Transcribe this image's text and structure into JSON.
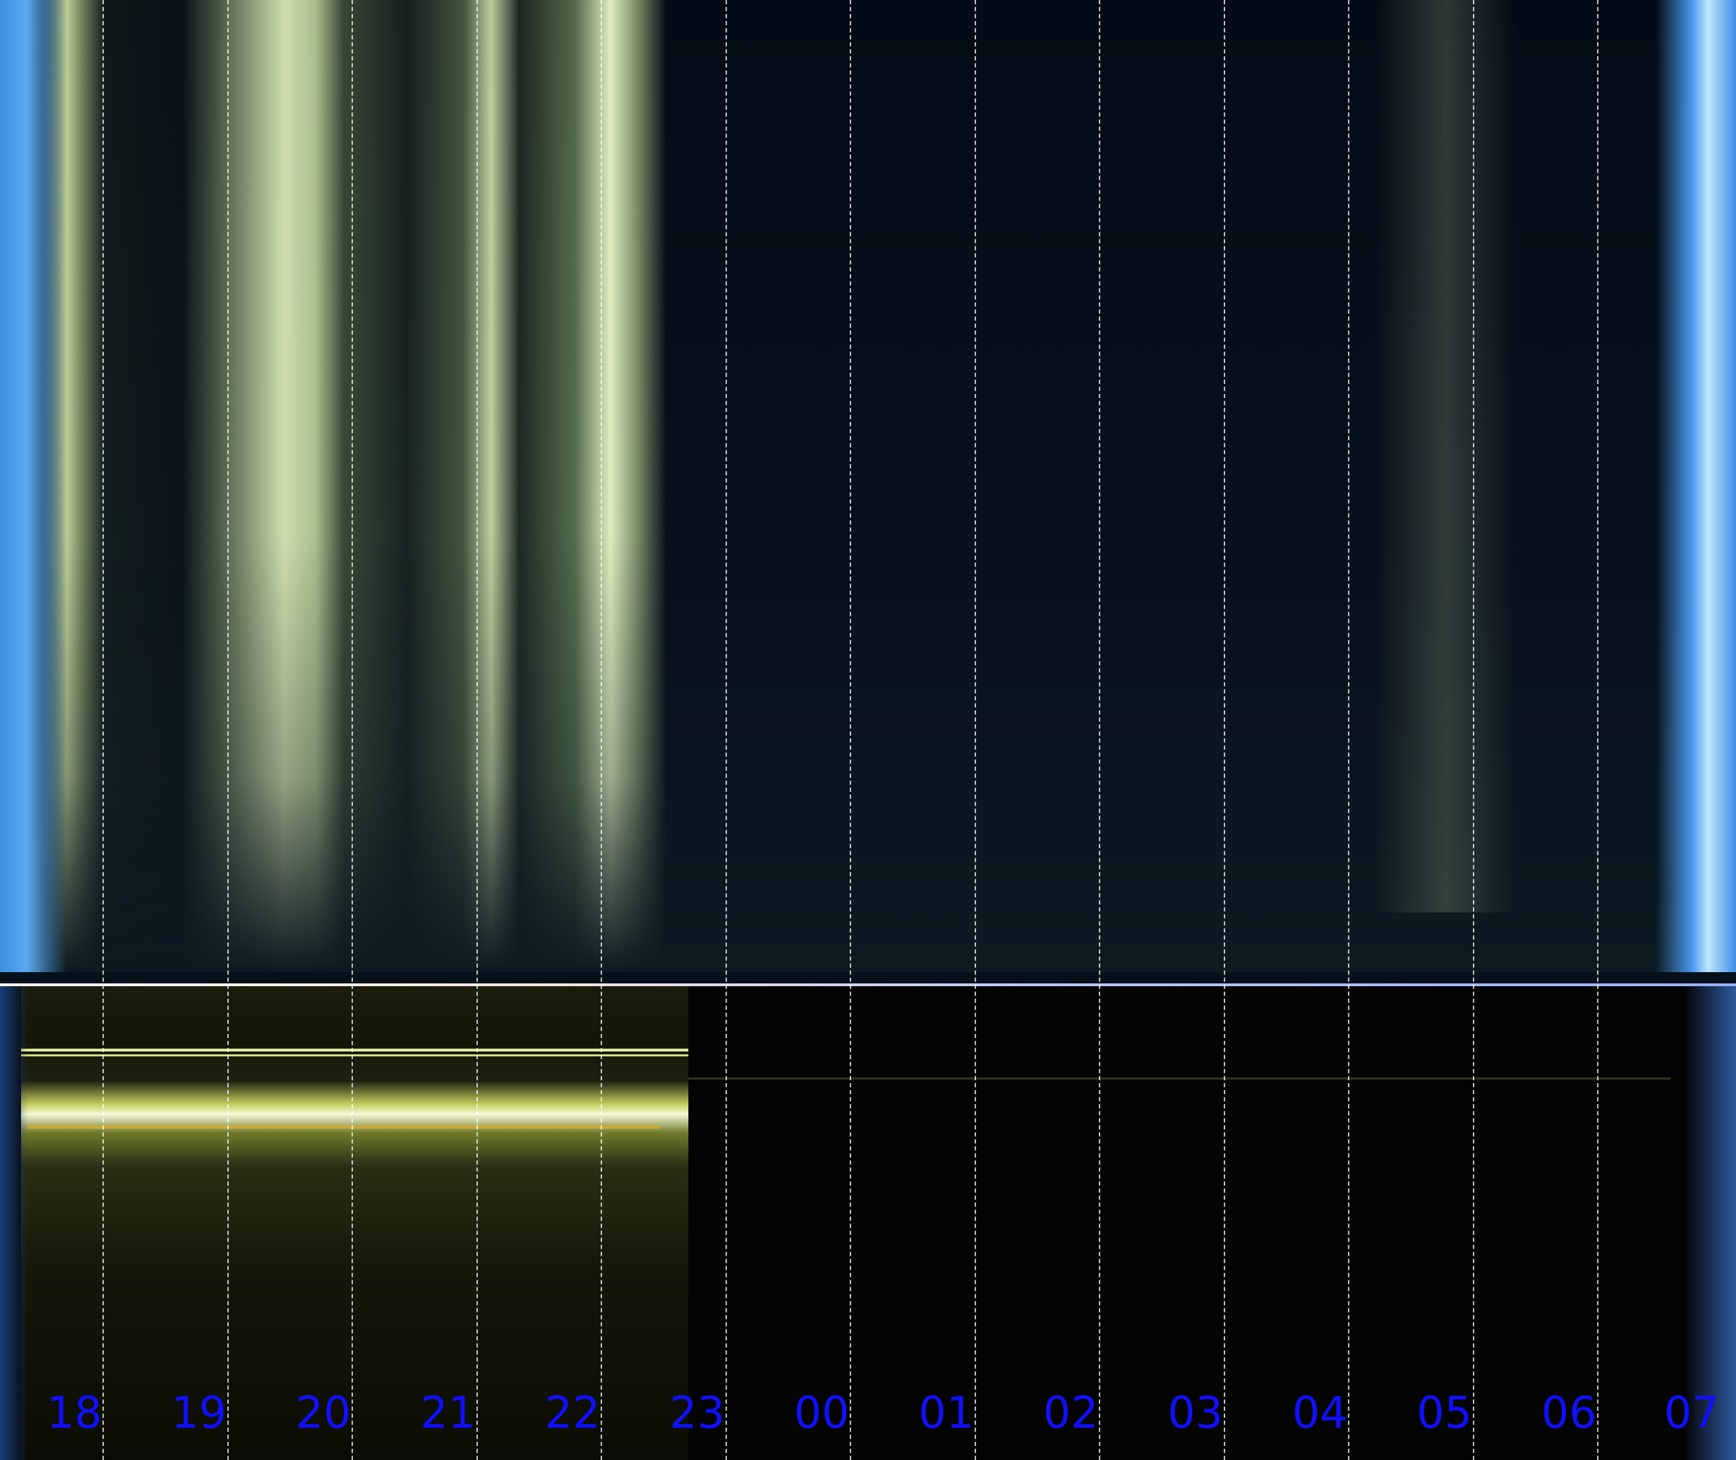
{
  "hours": [
    "18",
    "19",
    "20",
    "21",
    "22",
    "23",
    "00",
    "01",
    "02",
    "03",
    "04",
    "05",
    "06",
    "07"
  ],
  "colors": {
    "hour_label": "#1010ff",
    "grid": "#ffffff",
    "aurora": "#dcf0aa",
    "twilight": "#4a98ec"
  }
}
